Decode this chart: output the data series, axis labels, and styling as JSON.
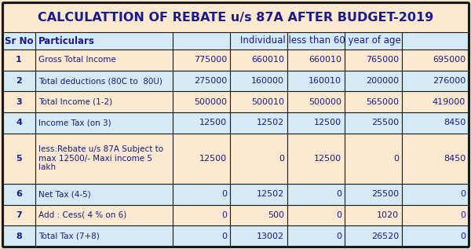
{
  "title": "CALCULATTION OF REBATE u/s 87A AFTER BUDGET-2019",
  "title_bg": "#fde8d0",
  "col_headers_bg": "#d4eaf5",
  "data_rows": [
    {
      "sr": "1",
      "particulars": "Gross Total Income",
      "values": [
        "775000",
        "660010",
        "660010",
        "765000",
        "695000"
      ]
    },
    {
      "sr": "2",
      "particulars": "Total deductions (80C to  80U)",
      "values": [
        "275000",
        "160000",
        "160010",
        "200000",
        "276000"
      ]
    },
    {
      "sr": "3",
      "particulars": "Total Income (1-2)",
      "values": [
        "500000",
        "500010",
        "500000",
        "565000",
        "419000"
      ]
    },
    {
      "sr": "4",
      "particulars": "Income Tax (on 3)",
      "values": [
        "12500",
        "12502",
        "12500",
        "25500",
        "8450"
      ]
    },
    {
      "sr": "5",
      "particulars": "less:Rebate u/s 87A Subject to\nmax 12500/- Maxi income 5\nlakh",
      "values": [
        "12500",
        "0",
        "12500",
        "0",
        "8450"
      ]
    },
    {
      "sr": "6",
      "particulars": "Net Tax (4-5)",
      "values": [
        "0",
        "12502",
        "0",
        "25500",
        "0"
      ]
    },
    {
      "sr": "7",
      "particulars": "Add : Cess( 4 % on 6)",
      "values": [
        "0",
        "500",
        "0",
        "1020",
        "0"
      ]
    },
    {
      "sr": "8",
      "particulars": "Total Tax (7+8)",
      "values": [
        "0",
        "13002",
        "0",
        "26520",
        "0"
      ]
    }
  ],
  "odd_row_bg": "#fde8d0",
  "even_row_bg": "#d4eaf5",
  "val_odd_bg": "#fde8d0",
  "val_even_bg": "#d4eaf5",
  "outer_bg": "#fde8d0",
  "border_color": "#1a1a1a",
  "text_color": "#1a1a8c",
  "font_size": 8.0,
  "title_font_size": 11.5,
  "header_font_size": 8.5
}
